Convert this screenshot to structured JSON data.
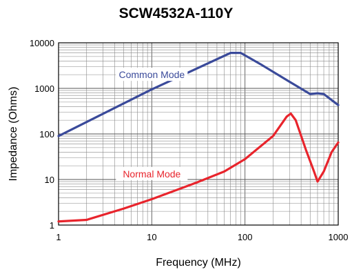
{
  "chart_data": {
    "type": "line",
    "title": "SCW4532A-110Y",
    "xlabel": "Frequency (MHz)",
    "ylabel": "Impedance (Ohms)",
    "x_scale": "log",
    "y_scale": "log",
    "xlim": [
      1,
      1000
    ],
    "ylim": [
      1,
      10000
    ],
    "x_ticks": [
      "1",
      "10",
      "100",
      "1000"
    ],
    "y_ticks": [
      "1",
      "10",
      "100",
      "1000",
      "10000"
    ],
    "grid": true,
    "series": [
      {
        "name": "Common Mode",
        "color": "#3a4a9a",
        "points": [
          [
            1,
            90
          ],
          [
            10,
            950
          ],
          [
            70,
            6000
          ],
          [
            90,
            6000
          ],
          [
            150,
            3300
          ],
          [
            300,
            1400
          ],
          [
            500,
            750
          ],
          [
            600,
            780
          ],
          [
            700,
            750
          ],
          [
            1000,
            430
          ]
        ]
      },
      {
        "name": "Normal Mode",
        "color": "#e8242c",
        "points": [
          [
            1,
            1.2
          ],
          [
            2,
            1.3
          ],
          [
            5,
            2.3
          ],
          [
            10,
            3.7
          ],
          [
            30,
            8.5
          ],
          [
            60,
            15
          ],
          [
            100,
            28
          ],
          [
            200,
            90
          ],
          [
            280,
            240
          ],
          [
            310,
            280
          ],
          [
            350,
            200
          ],
          [
            450,
            45
          ],
          [
            550,
            15
          ],
          [
            600,
            9
          ],
          [
            700,
            15
          ],
          [
            850,
            40
          ],
          [
            1000,
            65
          ]
        ]
      }
    ]
  }
}
